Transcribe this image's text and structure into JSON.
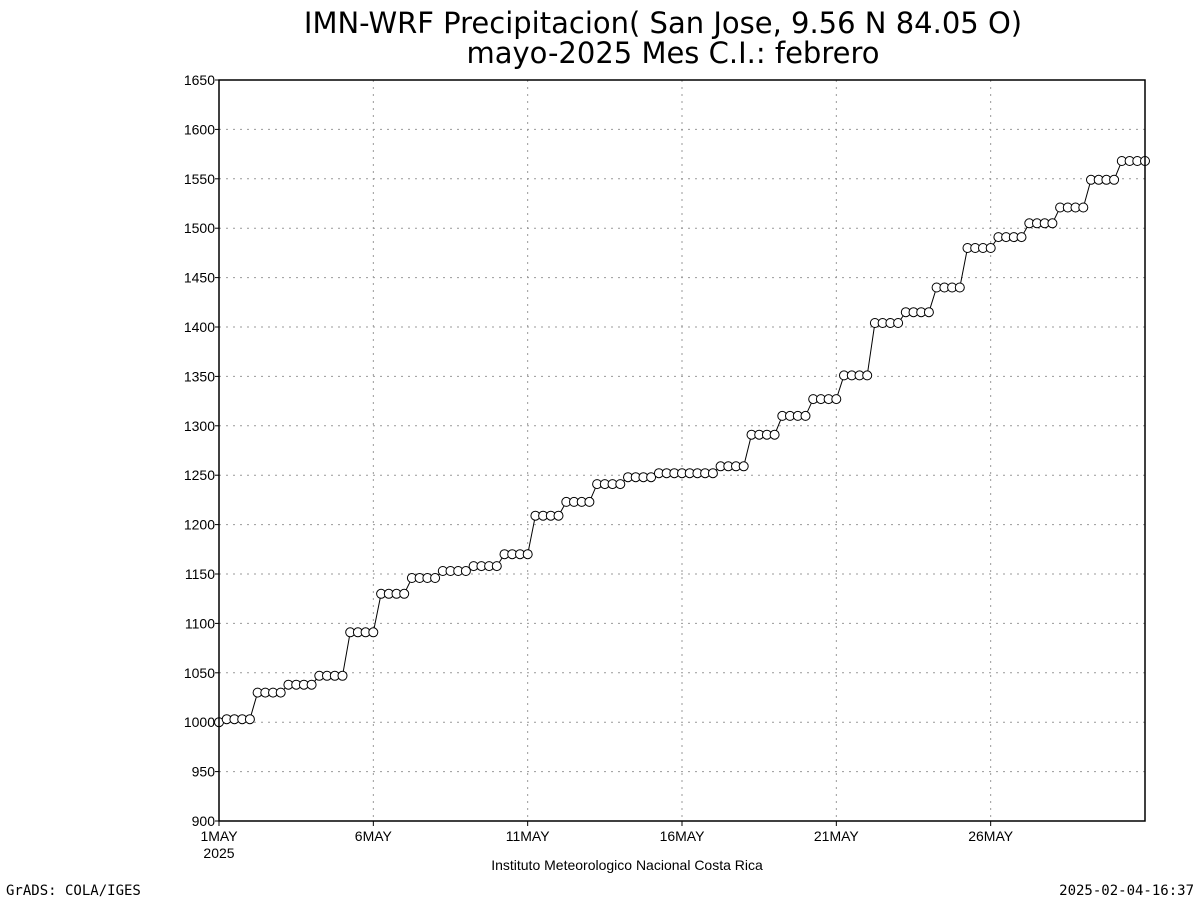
{
  "chart_data": {
    "type": "line",
    "title_line1": "IMN-WRF  Precipitacion( San Jose, 9.56  N 84.05  O)",
    "title_line2": "mayo-2025 Mes C.I.: febrero",
    "xlabel": "Instituto Meteorologico Nacional Costa Rica",
    "ylabel": "",
    "ylim": [
      900,
      1650
    ],
    "yticks": [
      900,
      950,
      1000,
      1050,
      1100,
      1150,
      1200,
      1250,
      1300,
      1350,
      1400,
      1450,
      1500,
      1550,
      1600,
      1650
    ],
    "xlim": [
      "2025-05-01 00:00",
      "2025-05-31 00:00"
    ],
    "xticks": [
      {
        "label": "1MAY",
        "sub": "2025",
        "day": 1
      },
      {
        "label": "6MAY",
        "sub": "",
        "day": 6
      },
      {
        "label": "11MAY",
        "sub": "",
        "day": 11
      },
      {
        "label": "16MAY",
        "sub": "",
        "day": 16
      },
      {
        "label": "21MAY",
        "sub": "",
        "day": 21
      },
      {
        "label": "26MAY",
        "sub": "",
        "day": 26
      }
    ],
    "grid": true,
    "marker": "open-circle",
    "series": [
      {
        "step_hours": 6,
        "values": [
          1000,
          1003,
          1003,
          1003,
          1003,
          1030,
          1030,
          1030,
          1030,
          1038,
          1038,
          1038,
          1038,
          1047,
          1047,
          1047,
          1047,
          1091,
          1091,
          1091,
          1091,
          1130,
          1130,
          1130,
          1130,
          1146,
          1146,
          1146,
          1146,
          1153,
          1153,
          1153,
          1153,
          1158,
          1158,
          1158,
          1158,
          1170,
          1170,
          1170,
          1170,
          1209,
          1209,
          1209,
          1209,
          1223,
          1223,
          1223,
          1223,
          1241,
          1241,
          1241,
          1241,
          1248,
          1248,
          1248,
          1248,
          1252,
          1252,
          1252,
          1252,
          1252,
          1252,
          1252,
          1252,
          1259,
          1259,
          1259,
          1259,
          1291,
          1291,
          1291,
          1291,
          1310,
          1310,
          1310,
          1310,
          1327,
          1327,
          1327,
          1327,
          1351,
          1351,
          1351,
          1351,
          1404,
          1404,
          1404,
          1404,
          1415,
          1415,
          1415,
          1415,
          1440,
          1440,
          1440,
          1440,
          1480,
          1480,
          1480,
          1480,
          1491,
          1491,
          1491,
          1491,
          1505,
          1505,
          1505,
          1505,
          1521,
          1521,
          1521,
          1521,
          1549,
          1549,
          1549,
          1549,
          1568,
          1568,
          1568,
          1568
        ]
      }
    ]
  },
  "footer": {
    "left": "GrADS: COLA/IGES",
    "right": "2025-02-04-16:37"
  }
}
